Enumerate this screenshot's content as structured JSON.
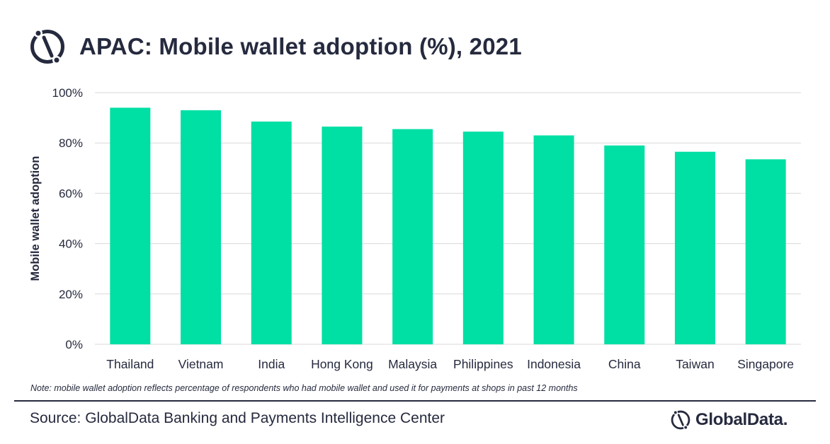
{
  "title": "APAC: Mobile wallet adoption (%), 2021",
  "note": "Note: mobile wallet adoption reflects percentage of respondents who had mobile wallet and used it for payments at shops in past 12 months",
  "source": "Source: GlobalData Banking and Payments Intelligence Center",
  "brand": "GlobalData.",
  "logo_icon": "globaldata-logo-icon",
  "colors": {
    "bar": "#00dfa4",
    "text": "#262a3e",
    "grid": "#d9d9d9"
  },
  "chart_data": {
    "type": "bar",
    "categories": [
      "Thailand",
      "Vietnam",
      "India",
      "Hong Kong",
      "Malaysia",
      "Philippines",
      "Indonesia",
      "China",
      "Taiwan",
      "Singapore"
    ],
    "values": [
      94,
      93,
      88.5,
      86.5,
      85.5,
      84.5,
      83,
      79,
      76.5,
      73.5
    ],
    "ylabel": "Mobile wallet adoption",
    "ylim": [
      0,
      100
    ],
    "yticks": [
      "0%",
      "20%",
      "40%",
      "60%",
      "80%",
      "100%"
    ],
    "grid": true,
    "legend": "none"
  }
}
